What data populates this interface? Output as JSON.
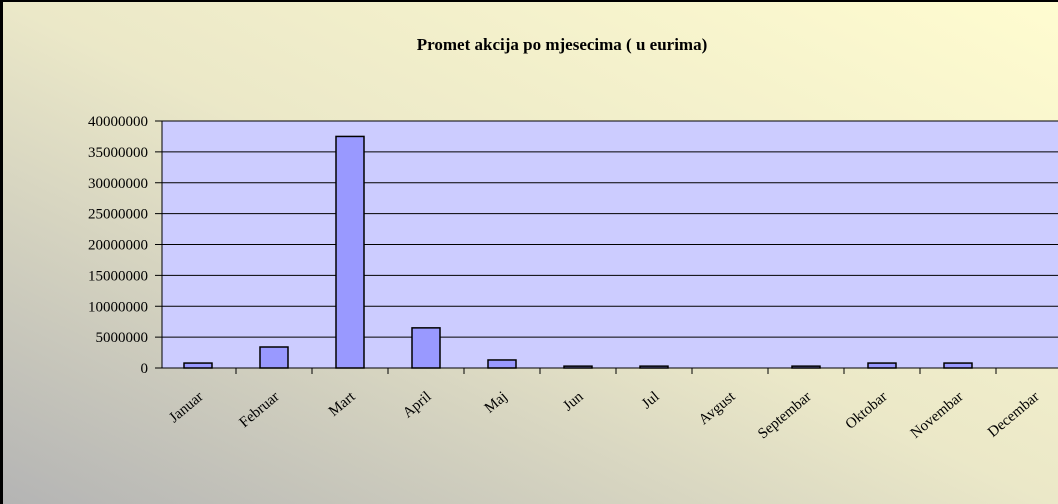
{
  "chart_data": {
    "type": "bar",
    "title": "Promet akcija po mjesecima ( u eurima)",
    "categories": [
      "Januar",
      "Februar",
      "Mart",
      "April",
      "Maj",
      "Jun",
      "Jul",
      "Avgust",
      "Septembar",
      "Oktobar",
      "Novembar",
      "Decembar"
    ],
    "values": [
      800000,
      3400000,
      37500000,
      6500000,
      1300000,
      300000,
      300000,
      0,
      300000,
      800000,
      800000,
      0
    ],
    "color": "#9999ff",
    "ylim": [
      0,
      40000000
    ],
    "yticks": [
      0,
      5000000,
      10000000,
      15000000,
      20000000,
      25000000,
      30000000,
      35000000,
      40000000
    ],
    "grid": true
  }
}
